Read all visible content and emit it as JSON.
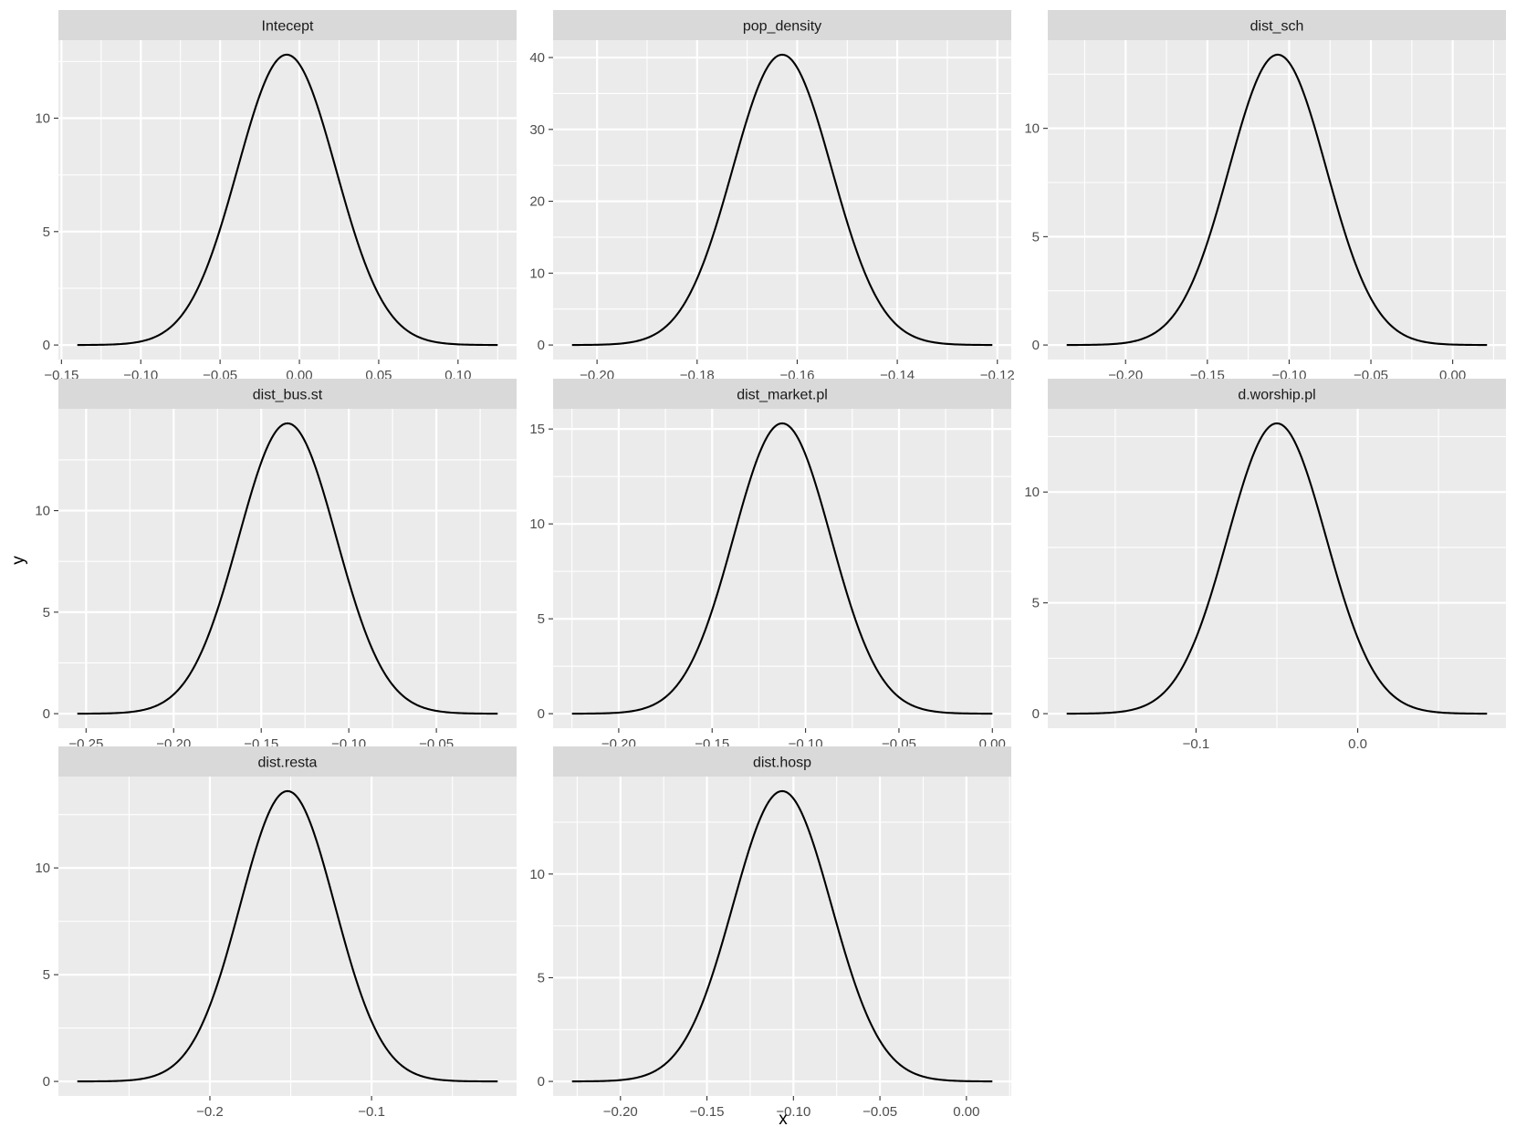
{
  "figure": {
    "xlabel": "x",
    "ylabel": "y",
    "colors": {
      "panel_background": "#ebebeb",
      "strip_background": "#d9d9d9",
      "grid_major": "#ffffff",
      "curve": "#000000",
      "tick_text": "#4d4d4d"
    }
  },
  "chart_data": [
    {
      "type": "line",
      "title": "Intecept",
      "xlim": [
        -0.14,
        0.125
      ],
      "ylim": [
        0,
        12.8
      ],
      "xticks": [
        -0.15,
        -0.1,
        -0.05,
        0.0,
        0.05,
        0.1
      ],
      "xtick_labels": [
        "−0.15",
        "−0.10",
        "−0.05",
        "0.00",
        "0.05",
        "0.10"
      ],
      "yticks": [
        0,
        5,
        10
      ],
      "ytick_labels": [
        "0",
        "5",
        "10"
      ],
      "series": [
        {
          "distribution": "normal",
          "mean": -0.008,
          "sd": 0.031,
          "peak": 12.8
        }
      ]
    },
    {
      "type": "line",
      "title": "pop_density",
      "xlim": [
        -0.205,
        -0.121
      ],
      "ylim": [
        0,
        40.4
      ],
      "xticks": [
        -0.2,
        -0.18,
        -0.16,
        -0.14,
        -0.12
      ],
      "xtick_labels": [
        "−0.20",
        "−0.18",
        "−0.16",
        "−0.14",
        "−0.12"
      ],
      "yticks": [
        0,
        10,
        20,
        30,
        40
      ],
      "ytick_labels": [
        "0",
        "10",
        "20",
        "30",
        "40"
      ],
      "series": [
        {
          "distribution": "normal",
          "mean": -0.163,
          "sd": 0.0099,
          "peak": 40.4
        }
      ]
    },
    {
      "type": "line",
      "title": "dist_sch",
      "xlim": [
        -0.236,
        0.021
      ],
      "ylim": [
        0,
        13.4
      ],
      "xticks": [
        -0.2,
        -0.15,
        -0.1,
        -0.05,
        0.0
      ],
      "xtick_labels": [
        "−0.20",
        "−0.15",
        "−0.10",
        "−0.05",
        "0.00"
      ],
      "yticks": [
        0,
        5,
        10
      ],
      "ytick_labels": [
        "0",
        "5",
        "10"
      ],
      "series": [
        {
          "distribution": "normal",
          "mean": -0.107,
          "sd": 0.0298,
          "peak": 13.4
        }
      ]
    },
    {
      "type": "line",
      "title": "dist_bus.st",
      "xlim": [
        -0.255,
        -0.015
      ],
      "ylim": [
        0,
        14.3
      ],
      "xticks": [
        -0.25,
        -0.2,
        -0.15,
        -0.1,
        -0.05
      ],
      "xtick_labels": [
        "−0.25",
        "−0.20",
        "−0.15",
        "−0.10",
        "−0.05"
      ],
      "yticks": [
        0,
        5,
        10
      ],
      "ytick_labels": [
        "0",
        "5",
        "10"
      ],
      "series": [
        {
          "distribution": "normal",
          "mean": -0.135,
          "sd": 0.0279,
          "peak": 14.3
        }
      ]
    },
    {
      "type": "line",
      "title": "dist_market.pl",
      "xlim": [
        -0.225,
        0.0
      ],
      "ylim": [
        0,
        15.3
      ],
      "xticks": [
        -0.2,
        -0.15,
        -0.1,
        -0.05,
        0.0
      ],
      "xtick_labels": [
        "−0.20",
        "−0.15",
        "−0.10",
        "−0.05",
        "0.00"
      ],
      "yticks": [
        0,
        5,
        10,
        15
      ],
      "ytick_labels": [
        "0",
        "5",
        "10",
        "15"
      ],
      "series": [
        {
          "distribution": "normal",
          "mean": -0.1125,
          "sd": 0.0261,
          "peak": 15.3
        }
      ]
    },
    {
      "type": "line",
      "title": "d.worship.pl",
      "xlim": [
        -0.18,
        0.08
      ],
      "ylim": [
        0,
        13.1
      ],
      "xticks": [
        -0.1,
        0.0
      ],
      "xtick_labels": [
        "−0.1",
        "0.0"
      ],
      "yticks": [
        0,
        5,
        10
      ],
      "ytick_labels": [
        "0",
        "5",
        "10"
      ],
      "series": [
        {
          "distribution": "normal",
          "mean": -0.05,
          "sd": 0.0305,
          "peak": 13.1
        }
      ]
    },
    {
      "type": "line",
      "title": "dist.resta",
      "xlim": [
        -0.282,
        -0.022
      ],
      "ylim": [
        0,
        13.6
      ],
      "xticks": [
        -0.2,
        -0.1
      ],
      "xtick_labels": [
        "−0.2",
        "−0.1"
      ],
      "yticks": [
        0,
        5,
        10
      ],
      "ytick_labels": [
        "0",
        "5",
        "10"
      ],
      "series": [
        {
          "distribution": "normal",
          "mean": -0.152,
          "sd": 0.0293,
          "peak": 13.6
        }
      ]
    },
    {
      "type": "line",
      "title": "dist.hosp",
      "xlim": [
        -0.228,
        0.015
      ],
      "ylim": [
        0,
        14.0
      ],
      "xticks": [
        -0.2,
        -0.15,
        -0.1,
        -0.05,
        0.0
      ],
      "xtick_labels": [
        "−0.20",
        "−0.15",
        "−0.10",
        "−0.05",
        "0.00"
      ],
      "yticks": [
        0,
        5,
        10
      ],
      "ytick_labels": [
        "0",
        "5",
        "10"
      ],
      "series": [
        {
          "distribution": "normal",
          "mean": -0.1065,
          "sd": 0.0285,
          "peak": 14.0
        }
      ]
    }
  ]
}
